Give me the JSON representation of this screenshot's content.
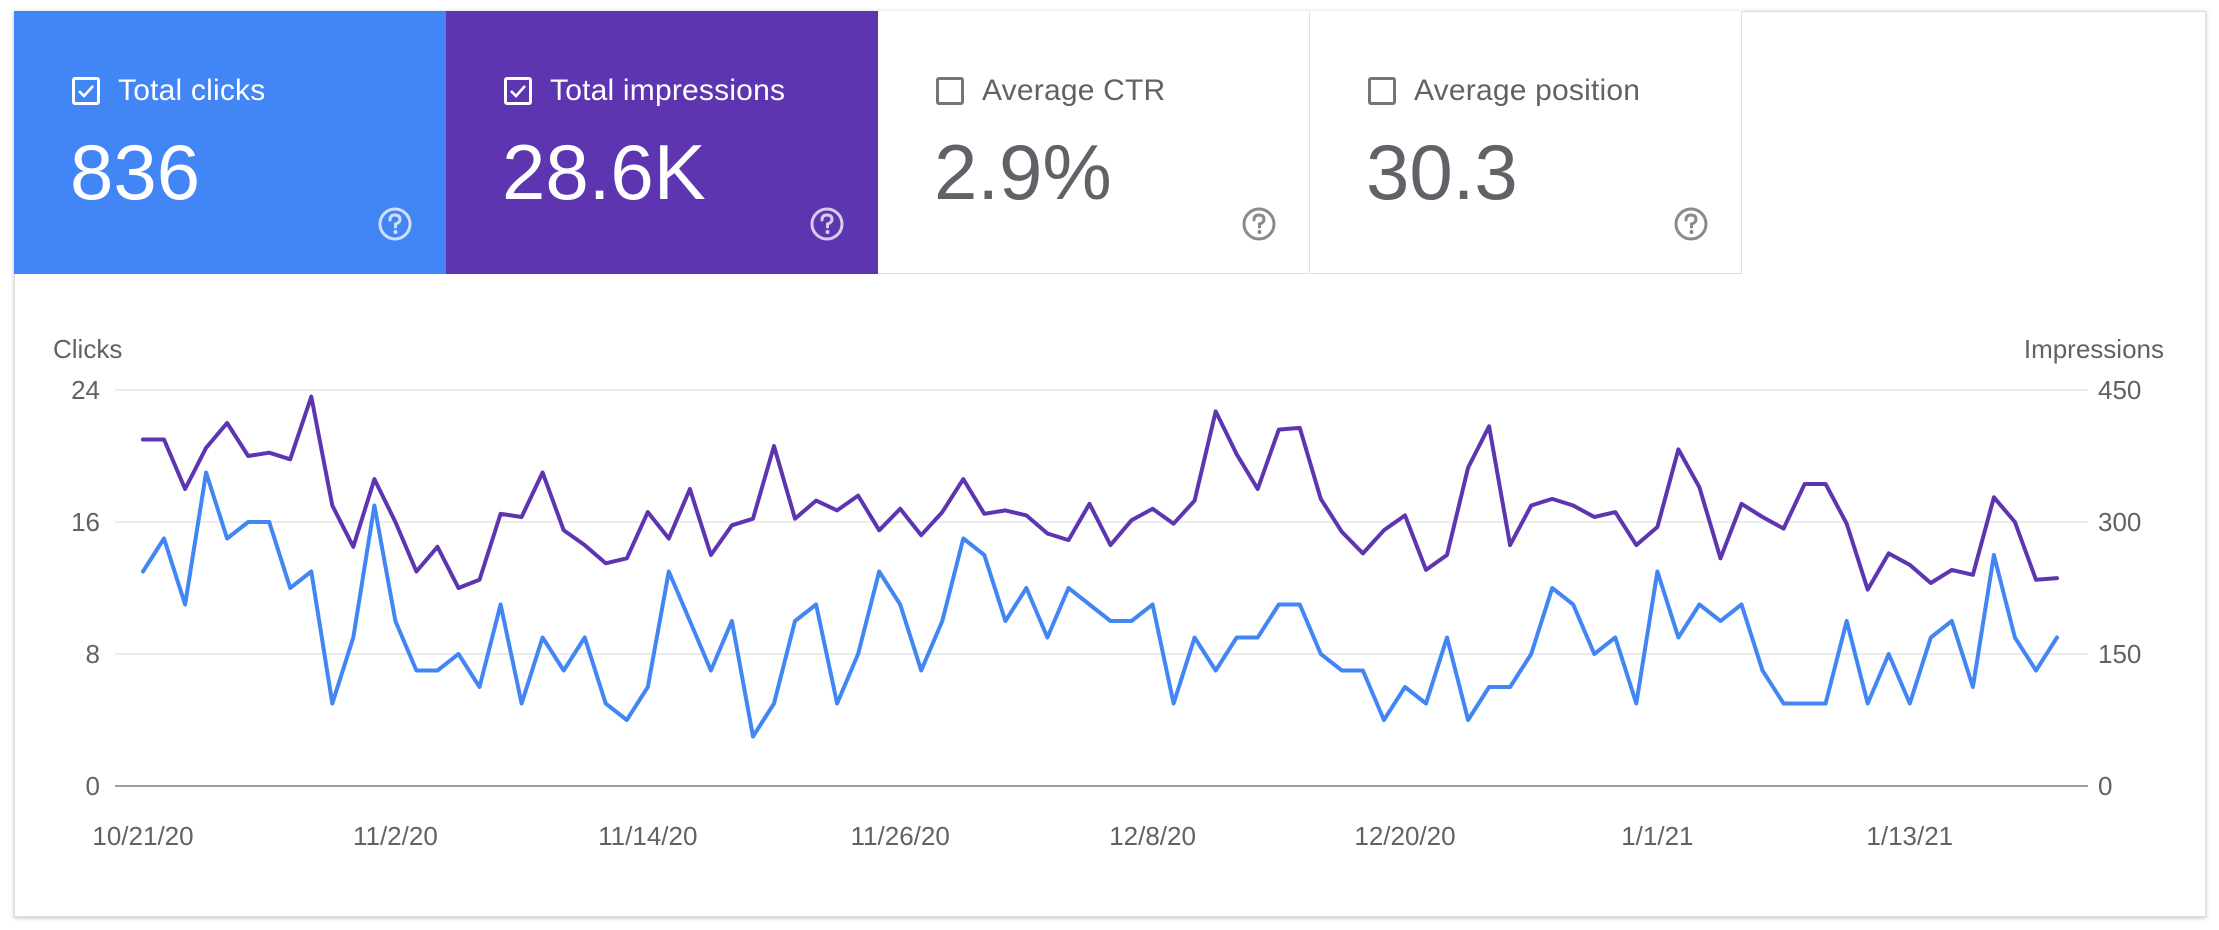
{
  "metrics": [
    {
      "label": "Total clicks",
      "value": "836",
      "checked": true,
      "color": "#4285f4"
    },
    {
      "label": "Total impressions",
      "value": "28.6K",
      "checked": true,
      "color": "#5e35b1"
    },
    {
      "label": "Average CTR",
      "value": "2.9%",
      "checked": false
    },
    {
      "label": "Average position",
      "value": "30.3",
      "checked": false
    }
  ],
  "icons": {
    "checkbox": "checkbox-icon",
    "help": "help-circle-icon"
  },
  "chart_data": {
    "type": "line",
    "left_axis_label": "Clicks",
    "right_axis_label": "Impressions",
    "left_ylim": [
      0,
      24
    ],
    "right_ylim": [
      0,
      450
    ],
    "left_ticks": [
      "0",
      "8",
      "16",
      "24"
    ],
    "right_ticks": [
      "0",
      "150",
      "300",
      "450"
    ],
    "x_tick_labels": [
      "10/21/20",
      "11/2/20",
      "11/14/20",
      "11/26/20",
      "12/8/20",
      "12/20/20",
      "1/1/21",
      "1/13/21"
    ],
    "grid": true,
    "series": [
      {
        "name": "Total clicks",
        "axis": "left",
        "color": "#4285f4",
        "values": [
          13,
          15,
          11,
          19,
          15,
          16,
          16,
          12,
          13,
          5,
          9,
          17,
          10,
          7,
          7,
          8,
          6,
          11,
          5,
          9,
          7,
          9,
          5,
          4,
          6,
          13,
          10,
          7,
          10,
          3,
          5,
          10,
          11,
          5,
          8,
          13,
          11,
          7,
          10,
          15,
          14,
          10,
          12,
          9,
          12,
          11,
          10,
          10,
          11,
          5,
          9,
          7,
          9,
          9,
          11,
          11,
          8,
          7,
          7,
          4,
          6,
          5,
          9,
          4,
          6,
          6,
          8,
          12,
          11,
          8,
          9,
          5,
          13,
          9,
          11,
          10,
          11,
          7,
          5,
          5,
          5,
          10,
          5,
          8,
          5,
          9,
          10,
          6,
          14,
          9,
          7,
          9
        ]
      },
      {
        "name": "Total impressions",
        "axis": "left",
        "color": "#5e35b1",
        "values": [
          21,
          21,
          18,
          20.5,
          22,
          20,
          20.2,
          19.8,
          23.6,
          17,
          14.5,
          18.6,
          16,
          13,
          14.5,
          12,
          12.5,
          16.5,
          16.3,
          19,
          15.5,
          14.6,
          13.5,
          13.8,
          16.6,
          15,
          18,
          14,
          15.8,
          16.2,
          20.6,
          16.2,
          17.3,
          16.7,
          17.6,
          15.5,
          16.8,
          15.2,
          16.6,
          18.6,
          16.5,
          16.7,
          16.4,
          15.3,
          14.9,
          17.1,
          14.6,
          16.1,
          16.8,
          15.9,
          17.3,
          22.7,
          20.1,
          18,
          21.6,
          21.7,
          17.4,
          15.4,
          14.1,
          15.5,
          16.4,
          13.1,
          14,
          19.3,
          21.8,
          14.6,
          17,
          17.4,
          17,
          16.3,
          16.6,
          14.6,
          15.7,
          20.4,
          18.1,
          13.8,
          17.1,
          16.3,
          15.6,
          18.3,
          18.3,
          15.9,
          11.9,
          14.1,
          13.4,
          12.3,
          13.1,
          12.8,
          17.5,
          16,
          12.5,
          12.6
        ]
      }
    ]
  }
}
